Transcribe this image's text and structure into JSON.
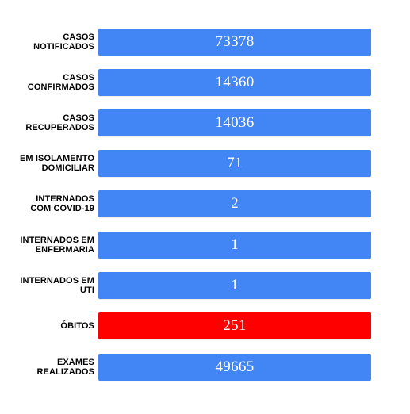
{
  "colors": {
    "default_bar": "#4285F4",
    "alert_bar": "#FF0000",
    "value_text": "#FFFFFF",
    "label_text": "#000000"
  },
  "stats": [
    {
      "label": "CASOS\nNOTIFICADOS",
      "value": "73378",
      "color": "#4285F4"
    },
    {
      "label": "CASOS\nCONFIRMADOS",
      "value": "14360",
      "color": "#4285F4"
    },
    {
      "label": "CASOS\nRECUPERADOS",
      "value": "14036",
      "color": "#4285F4"
    },
    {
      "label": "EM ISOLAMENTO\nDOMICILIAR",
      "value": "71",
      "color": "#4285F4"
    },
    {
      "label": "INTERNADOS\nCOM COVID-19",
      "value": "2",
      "color": "#4285F4"
    },
    {
      "label": "INTERNADOS EM\nENFERMARIA",
      "value": "1",
      "color": "#4285F4"
    },
    {
      "label": "INTERNADOS EM\nUTI",
      "value": "1",
      "color": "#4285F4"
    },
    {
      "label": "ÓBITOS",
      "value": "251",
      "color": "#FF0000"
    },
    {
      "label": "EXAMES\nREALIZADOS",
      "value": "49665",
      "color": "#4285F4"
    }
  ]
}
